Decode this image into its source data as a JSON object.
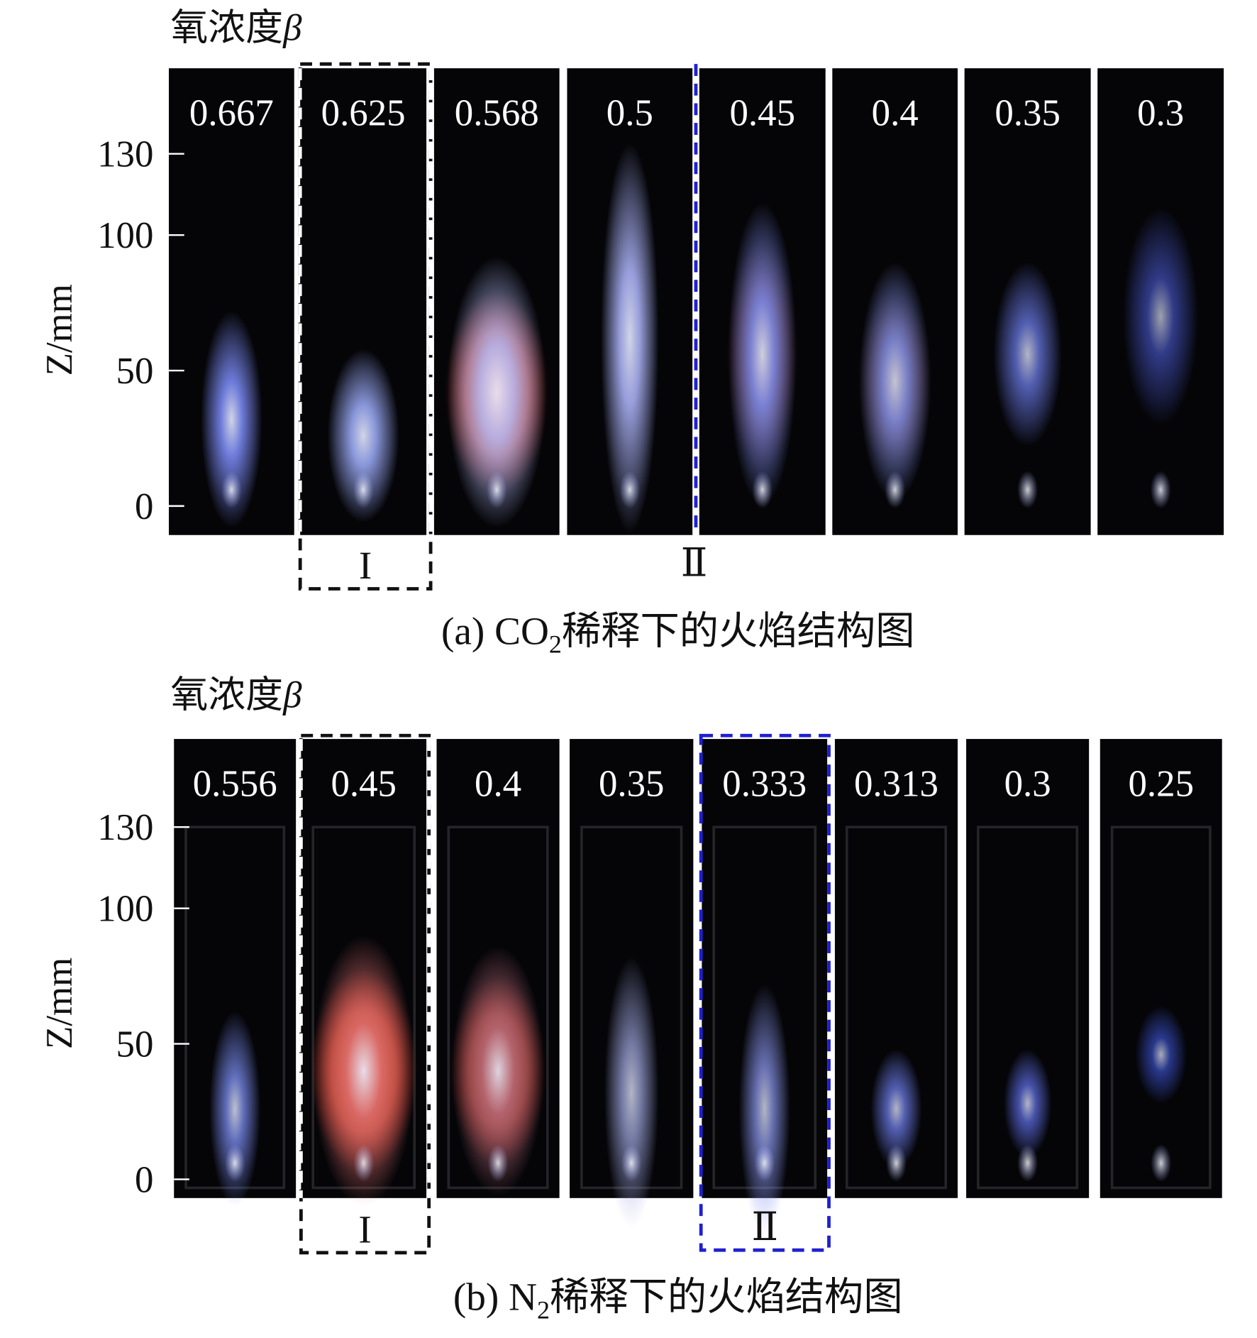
{
  "panels": [
    {
      "title": "氧浓度",
      "symbol": "β",
      "axis_label": "Z/mm",
      "yticks": [
        0,
        50,
        100,
        130
      ],
      "values": [
        0.667,
        0.625,
        0.568,
        0.5,
        0.45,
        0.4,
        0.35,
        0.3
      ],
      "groups": [
        "I",
        "Ⅱ"
      ],
      "caption": {
        "prefix": "(a) CO",
        "subscript": "2",
        "suffix": "稀释下的火焰结构图"
      }
    },
    {
      "title": "氧浓度",
      "symbol": "β",
      "axis_label": "Z/mm",
      "yticks": [
        0,
        50,
        100,
        130
      ],
      "values": [
        0.556,
        0.45,
        0.4,
        0.35,
        0.333,
        0.313,
        0.3,
        0.25
      ],
      "groups": [
        "I",
        "Ⅱ"
      ],
      "caption": {
        "prefix": "(b) N",
        "subscript": "2",
        "suffix": "稀释下的火焰结构图"
      }
    }
  ]
}
